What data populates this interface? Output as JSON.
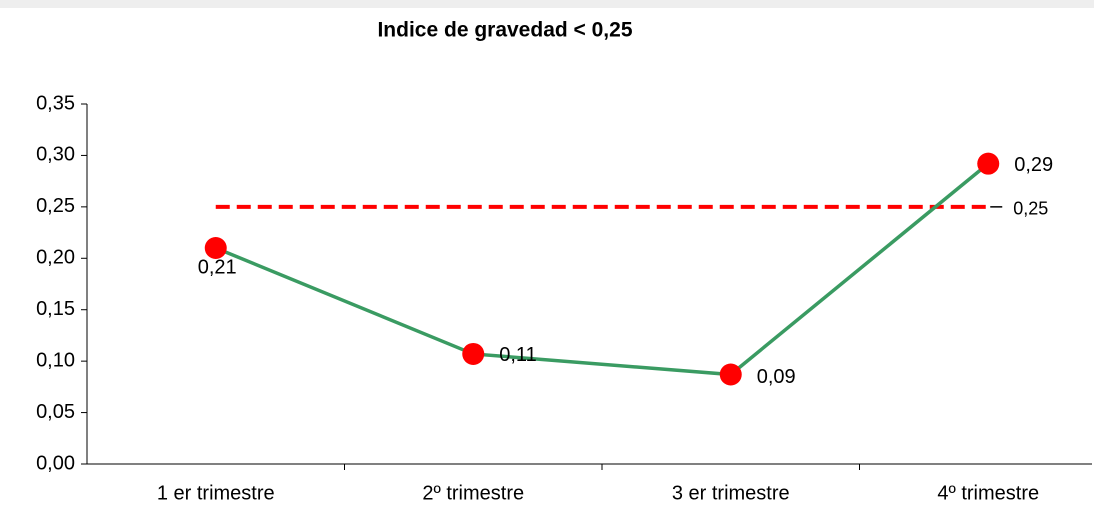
{
  "chart_data": {
    "type": "line",
    "title": "Indice de gravedad < 0,25",
    "categories": [
      "1 er trimestre",
      "2º trimestre",
      "3 er trimestre",
      "4º trimestre"
    ],
    "series": [
      {
        "color": "#3a9b62",
        "marker_color": "#ff0000",
        "values": [
          0.21,
          0.107,
          0.087,
          0.292
        ],
        "value_labels": [
          "0,21",
          "0,11",
          "0,09",
          "0,29"
        ]
      }
    ],
    "threshold": {
      "value": 0.25,
      "label": "0,25",
      "color": "#ff0000"
    },
    "ylim": [
      0,
      0.35
    ],
    "yticks": [
      {
        "value": 0,
        "label": "0,00"
      },
      {
        "value": 0.05,
        "label": "0,05"
      },
      {
        "value": 0.1,
        "label": "0,10"
      },
      {
        "value": 0.15,
        "label": "0,15"
      },
      {
        "value": 0.2,
        "label": "0,20"
      },
      {
        "value": 0.25,
        "label": "0,25"
      },
      {
        "value": 0.3,
        "label": "0,30"
      },
      {
        "value": 0.35,
        "label": "0,35"
      }
    ]
  }
}
